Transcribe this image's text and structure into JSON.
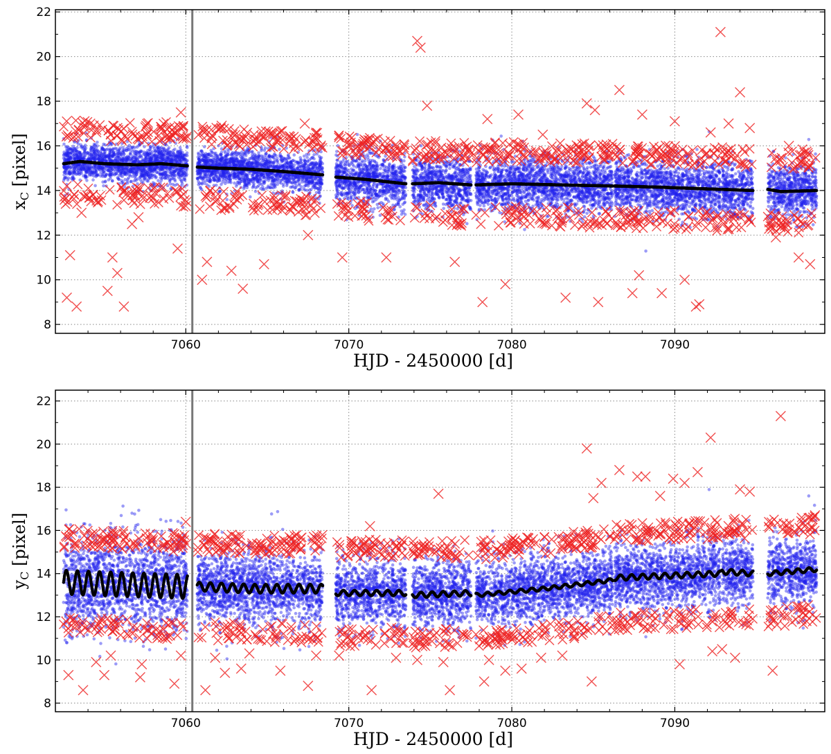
{
  "chart_data": [
    {
      "type": "scatter",
      "panel": "top",
      "ylabel": "x",
      "ylabel_sub": "C",
      "ylabel_unit": "[pixel]",
      "xlabel": "HJD - 2450000 [d]",
      "xlim": [
        7052.0,
        7099.2
      ],
      "ylim": [
        7.6,
        22.1
      ],
      "xticks": [
        7060,
        7070,
        7080,
        7090
      ],
      "yticks": [
        8,
        10,
        12,
        14,
        16,
        18,
        20,
        22
      ],
      "grid": true,
      "vertical_line_x": 7060.4,
      "colors": {
        "points": "#2222ee",
        "outliers": "#ee2222",
        "smooth": "#000000",
        "marker_line": "#777777"
      },
      "segments": [
        [
          7052.5,
          7060.1
        ],
        [
          7060.7,
          7068.4
        ],
        [
          7069.2,
          7073.5
        ],
        [
          7073.9,
          7077.5
        ],
        [
          7077.8,
          7086.2
        ],
        [
          7086.3,
          7092.8
        ],
        [
          7092.9,
          7094.8
        ],
        [
          7095.7,
          7098.7
        ]
      ],
      "smooth_curve": {
        "x": [
          7052.5,
          7053.5,
          7055,
          7057,
          7058.5,
          7060.1,
          7060.7,
          7062,
          7064,
          7066,
          7068.4,
          7069.2,
          7071,
          7073.5,
          7073.9,
          7075.5,
          7077.5,
          7077.8,
          7080,
          7083,
          7086.2,
          7086.3,
          7089,
          7092.8,
          7092.9,
          7094.8,
          7095.7,
          7096.5,
          7098.7
        ],
        "y": [
          15.2,
          15.3,
          15.2,
          15.15,
          15.2,
          15.1,
          15.05,
          15.0,
          14.95,
          14.85,
          14.7,
          14.6,
          14.5,
          14.3,
          14.3,
          14.35,
          14.25,
          14.25,
          14.3,
          14.25,
          14.2,
          14.2,
          14.15,
          14.05,
          14.05,
          14.0,
          14.05,
          13.95,
          14.0
        ]
      },
      "outliers": {
        "x": [
          7052.7,
          7052.9,
          7053.3,
          7053.6,
          7054.3,
          7055.2,
          7055.5,
          7055.8,
          7056.2,
          7056.7,
          7057.1,
          7059.5,
          7059.7,
          7060.0,
          7061.0,
          7061.3,
          7062.2,
          7062.8,
          7063.5,
          7064.8,
          7067.3,
          7067.5,
          7069.6,
          7071.5,
          7072.3,
          7074.2,
          7074.4,
          7074.8,
          7076.5,
          7078.2,
          7078.5,
          7079.6,
          7080.4,
          7081.9,
          7083.3,
          7084.6,
          7085.3,
          7086.6,
          7087.4,
          7088.0,
          7089.2,
          7090.0,
          7090.6,
          7091.5,
          7092.2,
          7092.8,
          7093.3,
          7094.0,
          7094.6,
          7096.2,
          7097.0,
          7097.6,
          7098.3,
          7085.1,
          7087.8,
          7091.3
        ],
        "y": [
          9.2,
          11.1,
          8.8,
          13.0,
          13.8,
          9.5,
          11.0,
          10.3,
          8.8,
          12.5,
          12.8,
          11.4,
          17.5,
          13.3,
          10.0,
          10.8,
          16.9,
          10.4,
          9.6,
          10.7,
          17.0,
          12.0,
          11.0,
          16.2,
          11.0,
          20.7,
          20.4,
          17.8,
          10.8,
          9.0,
          17.2,
          9.8,
          17.4,
          16.5,
          9.2,
          17.9,
          9.0,
          18.5,
          9.4,
          17.4,
          9.4,
          17.1,
          10.0,
          8.9,
          16.6,
          21.1,
          17.0,
          18.4,
          16.8,
          11.9,
          16.0,
          11.0,
          10.7,
          17.6,
          10.2,
          8.8
        ]
      }
    },
    {
      "type": "scatter",
      "panel": "bottom",
      "ylabel": "y",
      "ylabel_sub": "C",
      "ylabel_unit": "[pixel]",
      "xlabel": "HJD - 2450000 [d]",
      "xlim": [
        7052.0,
        7099.2
      ],
      "ylim": [
        7.6,
        22.5
      ],
      "xticks": [
        7060,
        7070,
        7080,
        7090
      ],
      "yticks": [
        8,
        10,
        12,
        14,
        16,
        18,
        20,
        22
      ],
      "grid": true,
      "vertical_line_x": 7060.4,
      "colors": {
        "points": "#2222ee",
        "outliers": "#ee2222",
        "smooth": "#000000",
        "marker_line": "#777777"
      },
      "segments": [
        [
          7052.5,
          7060.1
        ],
        [
          7060.7,
          7068.4
        ],
        [
          7069.2,
          7073.5
        ],
        [
          7073.9,
          7077.5
        ],
        [
          7077.8,
          7086.2
        ],
        [
          7086.3,
          7092.8
        ],
        [
          7092.9,
          7094.8
        ],
        [
          7095.7,
          7098.7
        ]
      ],
      "smooth_curve": {
        "x": [
          7052.5,
          7056,
          7060.1,
          7060.7,
          7064,
          7068.4,
          7069.2,
          7073.5,
          7073.9,
          7077.5,
          7077.8,
          7082,
          7086.2,
          7086.3,
          7092.8,
          7092.9,
          7094.8,
          7095.7,
          7098.7
        ],
        "y": [
          13.6,
          13.5,
          13.4,
          13.4,
          13.3,
          13.3,
          13.1,
          13.1,
          13.0,
          13.1,
          13.0,
          13.3,
          13.7,
          13.8,
          14.0,
          14.1,
          14.0,
          14.0,
          14.2
        ]
      },
      "smooth_amplitude": [
        0.55,
        0.2,
        0.12,
        0.12,
        0.08,
        0.12,
        0.12,
        0.1
      ],
      "outliers": {
        "x": [
          7052.8,
          7053.0,
          7053.7,
          7054.5,
          7055.0,
          7055.4,
          7057.2,
          7057.3,
          7059.3,
          7059.7,
          7060.0,
          7061.2,
          7061.8,
          7062.4,
          7063.4,
          7063.9,
          7065.8,
          7067.5,
          7068.0,
          7069.4,
          7071.3,
          7071.4,
          7072.9,
          7074.2,
          7075.5,
          7075.8,
          7076.2,
          7078.3,
          7078.6,
          7079.6,
          7080.6,
          7081.8,
          7083.1,
          7084.6,
          7084.9,
          7085.5,
          7086.6,
          7087.7,
          7088.2,
          7089.1,
          7089.9,
          7090.3,
          7090.6,
          7091.4,
          7092.2,
          7092.9,
          7093.7,
          7094.0,
          7094.6,
          7096.0,
          7096.5,
          7098.6,
          7092.3,
          7085.0
        ],
        "y": [
          9.3,
          11.6,
          8.6,
          9.9,
          9.3,
          10.2,
          9.2,
          9.8,
          8.9,
          10.2,
          16.4,
          8.6,
          10.1,
          9.4,
          9.6,
          10.3,
          9.5,
          8.8,
          10.2,
          10.2,
          16.2,
          8.6,
          10.1,
          10.0,
          17.7,
          9.9,
          8.6,
          9.0,
          10.0,
          9.5,
          9.6,
          10.1,
          10.2,
          19.8,
          9.0,
          18.2,
          18.8,
          18.5,
          18.5,
          17.6,
          18.4,
          9.8,
          18.2,
          18.7,
          20.3,
          10.5,
          10.1,
          17.9,
          17.8,
          9.5,
          21.3,
          16.7,
          10.4,
          17.5
        ]
      }
    }
  ]
}
